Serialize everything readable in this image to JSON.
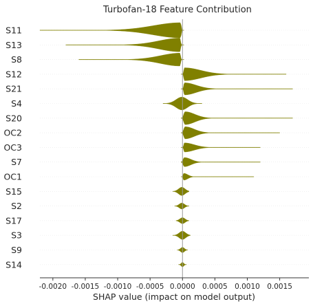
{
  "chart_data": {
    "type": "violin",
    "title": "Turbofan-18 Feature Contribution",
    "xlabel": "SHAP value (impact on model output)",
    "ylabel": "",
    "xlim": [
      -0.0022,
      0.00195
    ],
    "xticks": [
      -0.002,
      -0.0015,
      -0.001,
      -0.0005,
      0.0,
      0.0005,
      0.001,
      0.0015
    ],
    "xtick_labels": [
      "-0.0020",
      "-0.0015",
      "-0.0010",
      "-0.0005",
      "0.0000",
      "0.0005",
      "0.0010",
      "0.0015"
    ],
    "grid": false,
    "zero_line": true,
    "color": "#808000",
    "features": [
      {
        "name": "S11",
        "min": -0.0022,
        "max": 2e-05,
        "mode": -3e-05,
        "spread_neg": 0.00042,
        "spread_pos": 1e-05,
        "peak": 1.0
      },
      {
        "name": "S13",
        "min": -0.0018,
        "max": 2e-05,
        "mode": -4e-05,
        "spread_neg": 0.00032,
        "spread_pos": 1e-05,
        "peak": 0.9
      },
      {
        "name": "S8",
        "min": -0.0016,
        "max": 2e-05,
        "mode": -4e-05,
        "spread_neg": 0.0003,
        "spread_pos": 1e-05,
        "peak": 0.85
      },
      {
        "name": "S12",
        "min": -2e-05,
        "max": 0.0016,
        "mode": 3e-05,
        "spread_neg": 1e-05,
        "spread_pos": 0.00025,
        "peak": 0.85
      },
      {
        "name": "S21",
        "min": -2e-05,
        "max": 0.0017,
        "mode": 3e-05,
        "spread_neg": 1e-05,
        "spread_pos": 0.00018,
        "peak": 0.8
      },
      {
        "name": "S4",
        "min": -0.0003,
        "max": 0.0003,
        "mode": -1e-05,
        "spread_neg": 9e-05,
        "spread_pos": 9e-05,
        "peak": 0.85
      },
      {
        "name": "S20",
        "min": -2e-05,
        "max": 0.0017,
        "mode": 4e-05,
        "spread_neg": 2e-05,
        "spread_pos": 0.00015,
        "peak": 0.85
      },
      {
        "name": "OC2",
        "min": -2e-05,
        "max": 0.0015,
        "mode": 4e-05,
        "spread_neg": 2e-05,
        "spread_pos": 0.00014,
        "peak": 0.8
      },
      {
        "name": "OC3",
        "min": -2e-05,
        "max": 0.0012,
        "mode": 3e-05,
        "spread_neg": 1e-05,
        "spread_pos": 0.00015,
        "peak": 0.6
      },
      {
        "name": "S7",
        "min": -2e-05,
        "max": 0.0012,
        "mode": 3e-05,
        "spread_neg": 2e-05,
        "spread_pos": 0.0001,
        "peak": 0.6
      },
      {
        "name": "OC1",
        "min": -2e-05,
        "max": 0.0011,
        "mode": 2e-05,
        "spread_neg": 1e-05,
        "spread_pos": 6e-05,
        "peak": 0.45
      },
      {
        "name": "S15",
        "min": -0.00015,
        "max": 0.0001,
        "mode": -1e-05,
        "spread_neg": 5e-05,
        "spread_pos": 5e-05,
        "peak": 0.55
      },
      {
        "name": "S2",
        "min": -0.00012,
        "max": 0.0001,
        "mode": -1e-05,
        "spread_neg": 4e-05,
        "spread_pos": 4e-05,
        "peak": 0.4
      },
      {
        "name": "S17",
        "min": -0.0001,
        "max": 0.0001,
        "mode": 0.0,
        "spread_neg": 4e-05,
        "spread_pos": 4e-05,
        "peak": 0.4
      },
      {
        "name": "S3",
        "min": -0.00015,
        "max": 0.00012,
        "mode": 0.0,
        "spread_neg": 5e-05,
        "spread_pos": 5e-05,
        "peak": 0.55
      },
      {
        "name": "S9",
        "min": -8e-05,
        "max": 8e-05,
        "mode": 0.0,
        "spread_neg": 3e-05,
        "spread_pos": 3e-05,
        "peak": 0.35
      },
      {
        "name": "S14",
        "min": -6e-05,
        "max": 6e-05,
        "mode": 0.0,
        "spread_neg": 2e-05,
        "spread_pos": 2e-05,
        "peak": 0.3
      }
    ]
  }
}
